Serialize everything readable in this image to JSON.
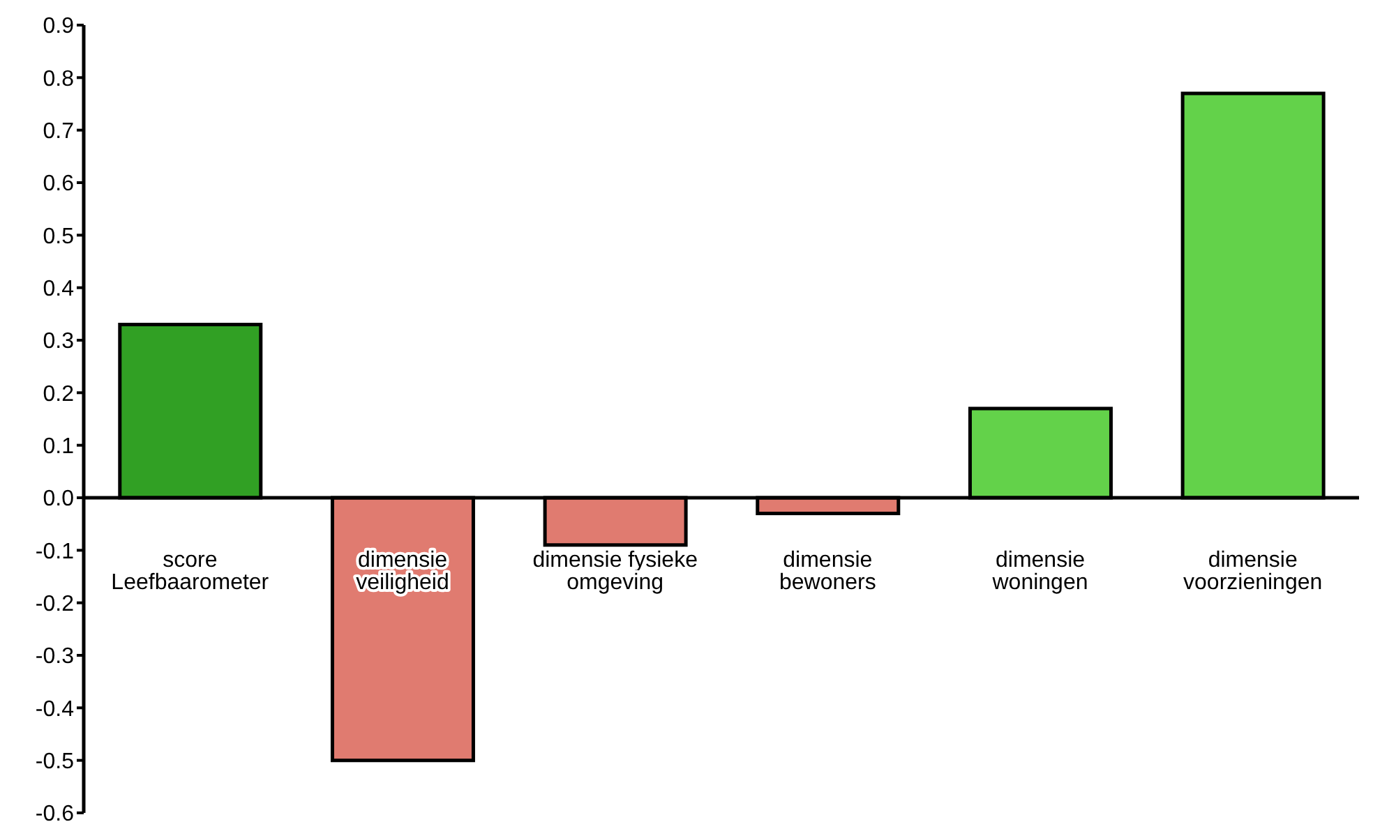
{
  "chart_data": {
    "type": "bar",
    "categories": [
      "score Leefbaarometer",
      "dimensie veiligheid",
      "dimensie fysieke omgeving",
      "dimensie bewoners",
      "dimensie woningen",
      "dimensie voorzieningen"
    ],
    "values": [
      0.33,
      -0.5,
      -0.09,
      -0.03,
      0.17,
      0.77
    ],
    "colors": [
      "#31a024",
      "#e07b70",
      "#e07b70",
      "#e07b70",
      "#63d24a",
      "#63d24a"
    ],
    "ylim": [
      -0.6,
      0.9
    ],
    "yticks": [
      -0.6,
      -0.5,
      -0.4,
      -0.3,
      -0.2,
      -0.1,
      {
        "value": 0,
        "label": "0.0"
      },
      0.1,
      0.2,
      0.3,
      0.4,
      0.5,
      0.6,
      0.7,
      0.8,
      0.9
    ],
    "grid": false,
    "legend": false
  }
}
